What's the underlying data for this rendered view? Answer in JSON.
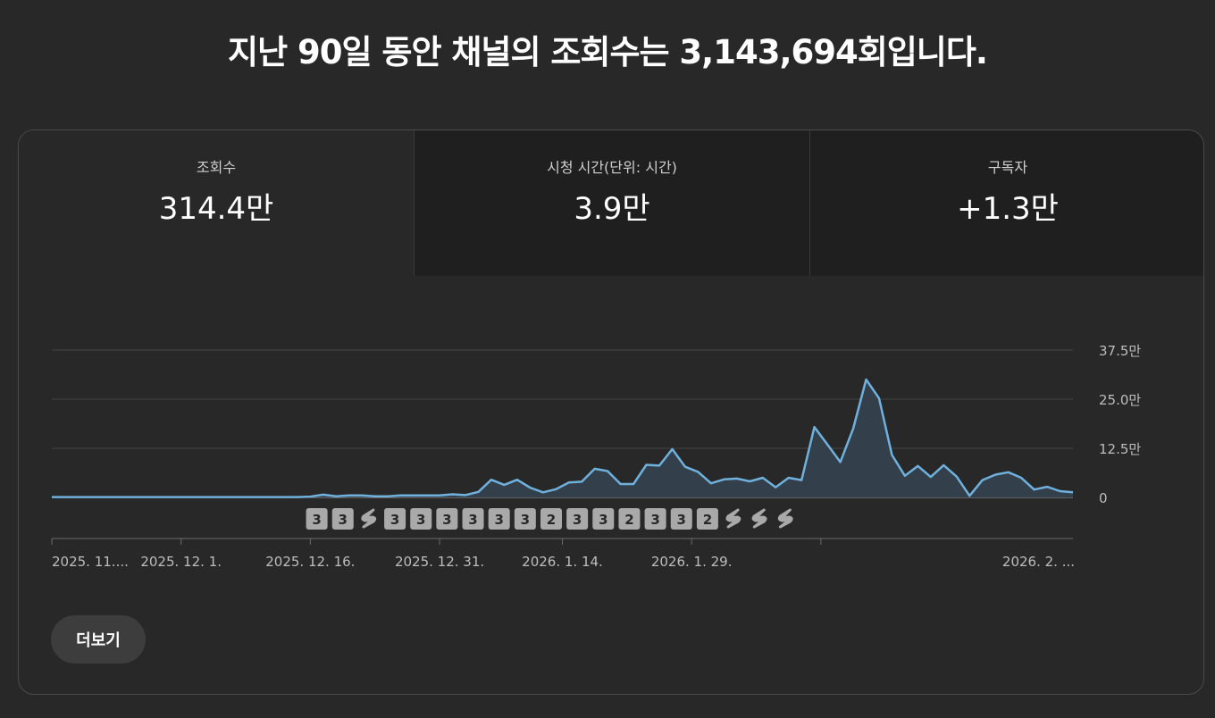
{
  "headline": "지난 90일 동안 채널의 조회수는 3,143,694회입니다.",
  "metrics": [
    {
      "label": "조회수",
      "value": "314.4만"
    },
    {
      "label": "시청 시간(단위: 시간)",
      "value": "3.9만"
    },
    {
      "label": "구독자",
      "value": "+1.3만"
    }
  ],
  "more_label": "더보기",
  "chart_data": {
    "type": "area",
    "y_unit": "만",
    "ylim": [
      0,
      37.5
    ],
    "y_ticks": [
      {
        "value": 0,
        "label": "0"
      },
      {
        "value": 12.5,
        "label": "12.5만"
      },
      {
        "value": 25,
        "label": "25.0만"
      },
      {
        "value": 37.5,
        "label": "37.5만"
      }
    ],
    "x_tick_labels": [
      "2025. 11....",
      "2025. 12. 1.",
      "2025. 12. 16.",
      "2025. 12. 31.",
      "2026. 1. 14.",
      "2026. 1. 29.",
      "2026. 2. ..."
    ],
    "x_tick_indices": [
      0,
      10,
      20,
      30,
      39.5,
      49.5,
      59.5
    ],
    "values": [
      0.1,
      0.1,
      0.1,
      0.1,
      0.1,
      0.1,
      0.1,
      0.1,
      0.1,
      0.1,
      0.1,
      0.1,
      0.1,
      0.1,
      0.1,
      0.1,
      0.1,
      0.1,
      0.1,
      0.1,
      0.2,
      0.7,
      0.3,
      0.5,
      0.5,
      0.3,
      0.3,
      0.5,
      0.5,
      0.5,
      0.5,
      0.8,
      0.6,
      1.4,
      4.5,
      3.2,
      4.5,
      2.5,
      1.3,
      2.1,
      3.8,
      4.0,
      7.3,
      6.7,
      3.4,
      3.4,
      8.3,
      8.1,
      12.3,
      7.8,
      6.5,
      3.6,
      4.6,
      4.8,
      4.1,
      5.0,
      2.6,
      5.0,
      4.4,
      17.9,
      13.5,
      9.0,
      17.5,
      30.0,
      25.2,
      10.8,
      5.5,
      8.0,
      5.2,
      8.2,
      5.3,
      0.4,
      4.4,
      5.8,
      6.4,
      5.0,
      2.0,
      2.7,
      1.6,
      1.3
    ],
    "upload_markers": [
      {
        "label": "3",
        "kind": "count"
      },
      {
        "label": "3",
        "kind": "count"
      },
      {
        "label": "",
        "kind": "shorts"
      },
      {
        "label": "3",
        "kind": "count"
      },
      {
        "label": "3",
        "kind": "count"
      },
      {
        "label": "3",
        "kind": "count"
      },
      {
        "label": "3",
        "kind": "count"
      },
      {
        "label": "3",
        "kind": "count"
      },
      {
        "label": "3",
        "kind": "count"
      },
      {
        "label": "2",
        "kind": "count"
      },
      {
        "label": "3",
        "kind": "count"
      },
      {
        "label": "3",
        "kind": "count"
      },
      {
        "label": "2",
        "kind": "count"
      },
      {
        "label": "3",
        "kind": "count"
      },
      {
        "label": "3",
        "kind": "count"
      },
      {
        "label": "2",
        "kind": "count"
      },
      {
        "label": "",
        "kind": "shorts"
      },
      {
        "label": "",
        "kind": "shorts"
      },
      {
        "label": "",
        "kind": "shorts"
      }
    ],
    "colors": {
      "line": "#6fb1dc",
      "fill": "#33404c",
      "grid": "#444444",
      "axis": "#6a6a6a",
      "marker": "#a9a9a9",
      "marker_text": "#282828"
    }
  }
}
